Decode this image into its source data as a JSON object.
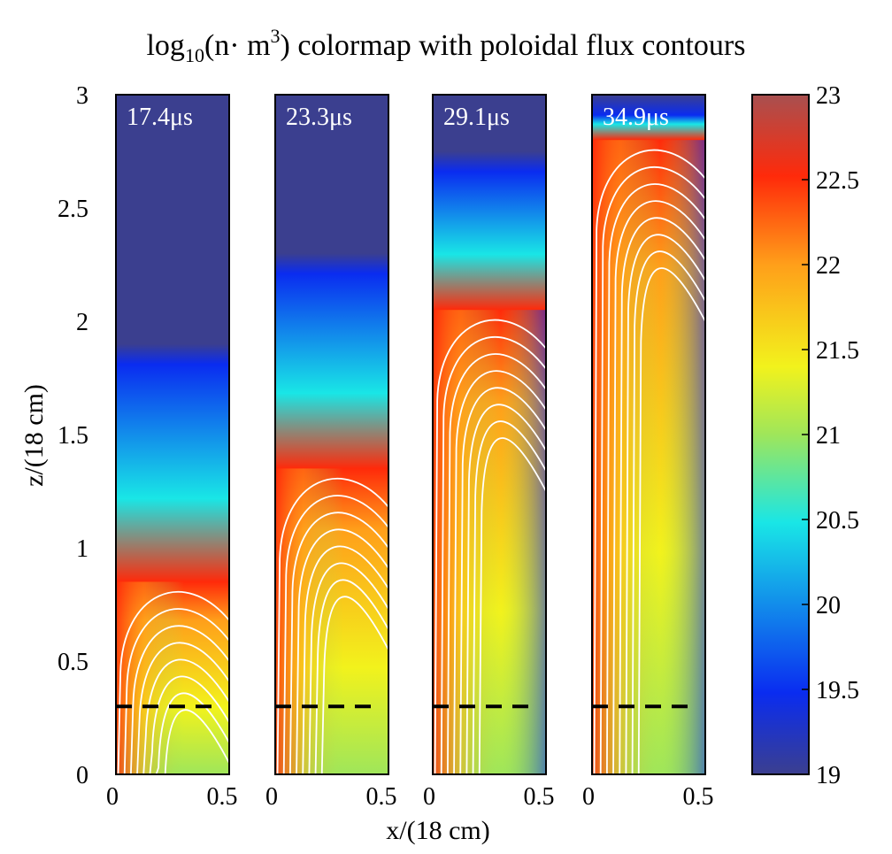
{
  "chart_data": {
    "type": "heatmap",
    "title": {
      "pre": "log",
      "sub": "10",
      "mid": "(n· m",
      "sup": "3",
      "post": ") colormap with poloidal flux contours"
    },
    "xlabel": "x/(18 cm)",
    "ylabel": "z/(18 cm)",
    "xlim": [
      0,
      0.5
    ],
    "ylim": [
      0,
      3
    ],
    "x_ticks": [
      "0",
      "0.5"
    ],
    "y_ticks": [
      "0",
      "0.5",
      "1",
      "1.5",
      "2",
      "2.5",
      "3"
    ],
    "panels": [
      {
        "label": "17.4μs",
        "front_z": 0.85,
        "blue_z": 1.9,
        "contours": 8
      },
      {
        "label": "23.3μs",
        "front_z": 1.35,
        "blue_z": 2.3,
        "contours": 8
      },
      {
        "label": "29.1μs",
        "front_z": 2.05,
        "blue_z": 2.75,
        "contours": 8
      },
      {
        "label": "34.9μs",
        "front_z": 2.8,
        "blue_z": 3.0,
        "contours": 8
      }
    ],
    "dashed_line_z": 0.3,
    "colorbar": {
      "min": 19,
      "max": 23,
      "ticks": [
        "19",
        "19.5",
        "20",
        "20.5",
        "21",
        "21.5",
        "22",
        "22.5",
        "23"
      ]
    },
    "colors": {
      "dark_navy": "#3b3f8f",
      "blue": "#0a2cf0",
      "cyan": "#19e6e6",
      "green": "#9fe65a",
      "yellow": "#f2f21c",
      "orange": "#ff9f1a",
      "red": "#ff2a0a",
      "brown": "#a85050",
      "contour": "#ffffff",
      "dash": "#000000"
    }
  }
}
